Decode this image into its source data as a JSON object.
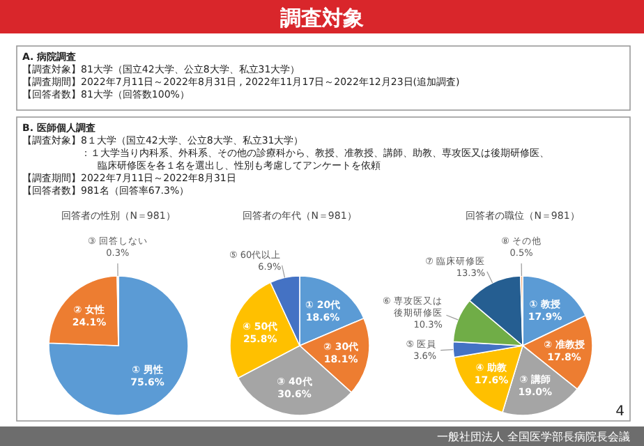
{
  "chart_data": [
    {
      "type": "other",
      "title": "調査対象",
      "annotations": [
        "A. 病院調査",
        "【調査対象】81大学（国立42大学、公立8大学、私立31大学）",
        "【調査期間】2022年7月11日～2022年8月31日 , 2022年11月17日～2022年12月23日(追加調査)",
        "【回答者数】81大学（回答数100%）",
        "B. 医師個人調査",
        "【調査対象】8１大学（国立42大学、公立8大学、私立31大学）",
        "：１大学当り内科系、外科系、その他の診療科から、教授、准教授、講師、助教、専攻医又は後期研修医、",
        "臨床研修医を各１名を選出し、性別も考慮してアンケートを依頼",
        "【調査期間】2022年7月11日～2022年8月31日",
        "【回答者数】981名（回答率67.3%）",
        "4",
        "一般社団法人 全国医学部長病院長会議"
      ]
    },
    {
      "type": "pie",
      "title": "回答者の性別（N＝981）",
      "categories": [
        "① 男性",
        "② 女性",
        "③ 回答しない"
      ],
      "values": [
        75.6,
        24.1,
        0.3
      ],
      "colors": [
        "#5b9bd5",
        "#ed7d31",
        "#a5a5a5"
      ],
      "value_labels": [
        "75.6%",
        "24.1%",
        "0.3%"
      ]
    },
    {
      "type": "pie",
      "title": "回答者の年代（N＝981）",
      "categories": [
        "① 20代",
        "② 30代",
        "③ 40代",
        "④ 50代",
        "⑤ 60代以上"
      ],
      "values": [
        18.6,
        18.1,
        30.6,
        25.8,
        6.9
      ],
      "colors": [
        "#5b9bd5",
        "#ed7d31",
        "#a5a5a5",
        "#ffc000",
        "#4472c4"
      ],
      "value_labels": [
        "18.6%",
        "18.1%",
        "30.6%",
        "25.8%",
        "6.9%"
      ]
    },
    {
      "type": "pie",
      "title": "回答者の職位（N＝981）",
      "categories": [
        "① 教授",
        "② 准教授",
        "③ 講師",
        "④ 助教",
        "⑤ 医員",
        "⑥ 専攻医又は後期研修医",
        "⑦ 臨床研修医",
        "⑧ その他"
      ],
      "values": [
        17.9,
        17.8,
        19.0,
        17.6,
        3.6,
        10.3,
        13.3,
        0.5
      ],
      "colors": [
        "#5b9bd5",
        "#ed7d31",
        "#a5a5a5",
        "#ffc000",
        "#4472c4",
        "#70ad47",
        "#255e91",
        "#f4b183"
      ],
      "value_labels": [
        "17.9%",
        "17.8%",
        "19.0%",
        "17.6%",
        "3.6%",
        "10.3%",
        "13.3%",
        "0.5%"
      ]
    }
  ]
}
